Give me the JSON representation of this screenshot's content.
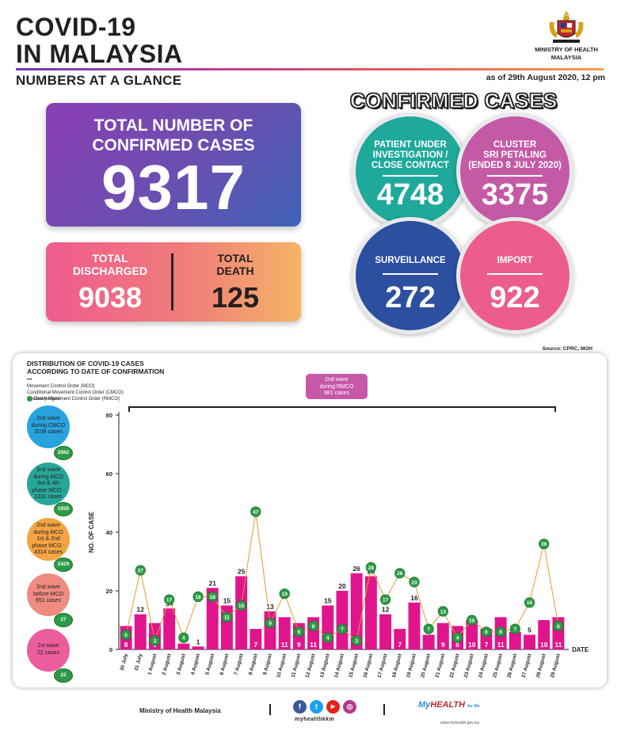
{
  "header": {
    "title_line1": "COVID-19",
    "title_line2": "IN MALAYSIA",
    "subtitle": "NUMBERS AT A GLANCE",
    "as_of": "as of 29th August 2020, 12 pm",
    "ministry_line1": "MINISTRY OF HEALTH",
    "ministry_line2": "MALAYSIA"
  },
  "totals": {
    "confirmed_label_line1": "TOTAL NUMBER OF",
    "confirmed_label_line2": "CONFIRMED CASES",
    "confirmed_value": "9317",
    "discharged_label_line1": "TOTAL",
    "discharged_label_line2": "DISCHARGED",
    "discharged_value": "9038",
    "death_label_line1": "TOTAL",
    "death_label_line2": "DEATH",
    "death_value": "125"
  },
  "confirmed_cases": {
    "title": "CONFIRMED CASES",
    "pui": {
      "label_line1": "PATIENT UNDER",
      "label_line2": "INVESTIGATION /",
      "label_line3": "CLOSE CONTACT",
      "value": "4748",
      "color": "#1fa99b"
    },
    "cluster": {
      "label_line1": "CLUSTER",
      "label_line2": "SRI PETALING",
      "label_line3": "(ENDED 8 JULY 2020)",
      "value": "3375",
      "color": "#c45aa6"
    },
    "surveillance": {
      "label": "SURVEILLANCE",
      "value": "272",
      "color": "#2c4fa0"
    },
    "import": {
      "label": "IMPORT",
      "value": "922",
      "color": "#ec5d8b"
    }
  },
  "chart_panel": {
    "source": "Source: CPRC, MOH",
    "title_line1": "DISTRIBUTION OF COVID-19 CASES",
    "title_line2": "ACCORDING TO DATE OF CONFIRMATION",
    "legend_marker": "•••",
    "legend_mco": "Movement Control Order (MCO)",
    "legend_cmco": "Conditional Movement Control Order (CMCO)",
    "legend_rmco": "Recovery Movement Control Order (RMCO)",
    "legend_discharged": "Discharged",
    "rmco_box": {
      "line1": "2nd wave",
      "line2": "during RMCO",
      "line3": "981 cases"
    },
    "waves": [
      {
        "line1": "2nd wave",
        "line2": "during CMCO",
        "line3": "2038 cases",
        "line4": "",
        "line5": "",
        "badge": "2562",
        "color": "#29a3df"
      },
      {
        "line1": "2nd wave",
        "line2": "during MCO",
        "line3": "3rd & 4th",
        "line4": "phase MCO -",
        "line5": "1311 cases",
        "badge": "1935",
        "color": "#27a79a"
      },
      {
        "line1": "2nd wave",
        "line2": "during MCO",
        "line3": "1st & 2nd",
        "line4": "phase MCO -",
        "line5": "4314 cases",
        "badge": "2429",
        "color": "#f4a442"
      },
      {
        "line1": "2nd wave",
        "line2": "before MCO",
        "line3": "651 cases",
        "line4": "",
        "line5": "",
        "badge": "27",
        "color": "#ef8b80"
      },
      {
        "line1": "1st wave",
        "line2": "22 cases",
        "line3": "",
        "line4": "",
        "line5": "",
        "badge": "22",
        "color": "#ec5d9b"
      }
    ]
  },
  "chart_data": {
    "type": "bar",
    "title": "DISTRIBUTION OF COVID-19 CASES ACCORDING TO DATE OF CONFIRMATION",
    "xlabel": "DATE",
    "ylabel": "NO. OF CASE",
    "ylim": [
      0,
      80
    ],
    "yticks": [
      0,
      20,
      40,
      60,
      80
    ],
    "categories": [
      "30 July",
      "31 July",
      "1 August",
      "2 August",
      "3 August",
      "4 August",
      "5 August",
      "6 August",
      "7 August",
      "8 August",
      "9 August",
      "10 August",
      "11 August",
      "12 August",
      "13 August",
      "14 August",
      "15 August",
      "16 August",
      "17 August",
      "18 August",
      "19 August",
      "20 August",
      "21 August",
      "22 August",
      "23 August",
      "24 August",
      "25 August",
      "26 August",
      "27 August",
      "28 August",
      "29 August"
    ],
    "series": [
      {
        "name": "Confirmed cases",
        "values": [
          8,
          12,
          9,
          14,
          2,
          1,
          21,
          15,
          25,
          7,
          13,
          11,
          9,
          11,
          15,
          20,
          26,
          25,
          12,
          7,
          16,
          5,
          9,
          8,
          10,
          7,
          11,
          6,
          5,
          10,
          11
        ],
        "color": "#e0148d"
      },
      {
        "name": "Discharged",
        "values": [
          5,
          27,
          3,
          17,
          4,
          18,
          18,
          11,
          15,
          47,
          9,
          19,
          6,
          8,
          4,
          7,
          3,
          28,
          17,
          26,
          23,
          7,
          13,
          4,
          10,
          6,
          6,
          7,
          16,
          36,
          8
        ],
        "color": "#e69a2e",
        "marker_color": "#2c9b45"
      }
    ]
  },
  "footer": {
    "ministry": "Ministry of Health Malaysia",
    "handle": "myhealthkkm",
    "social_fb": "f",
    "social_tw": "t",
    "social_yt": "▶",
    "social_ig": "◎",
    "brand_prefix": "My",
    "brand_main": "HEALTH",
    "brand_tag": "for life",
    "brand_url": "www.myhealth.gov.my"
  }
}
